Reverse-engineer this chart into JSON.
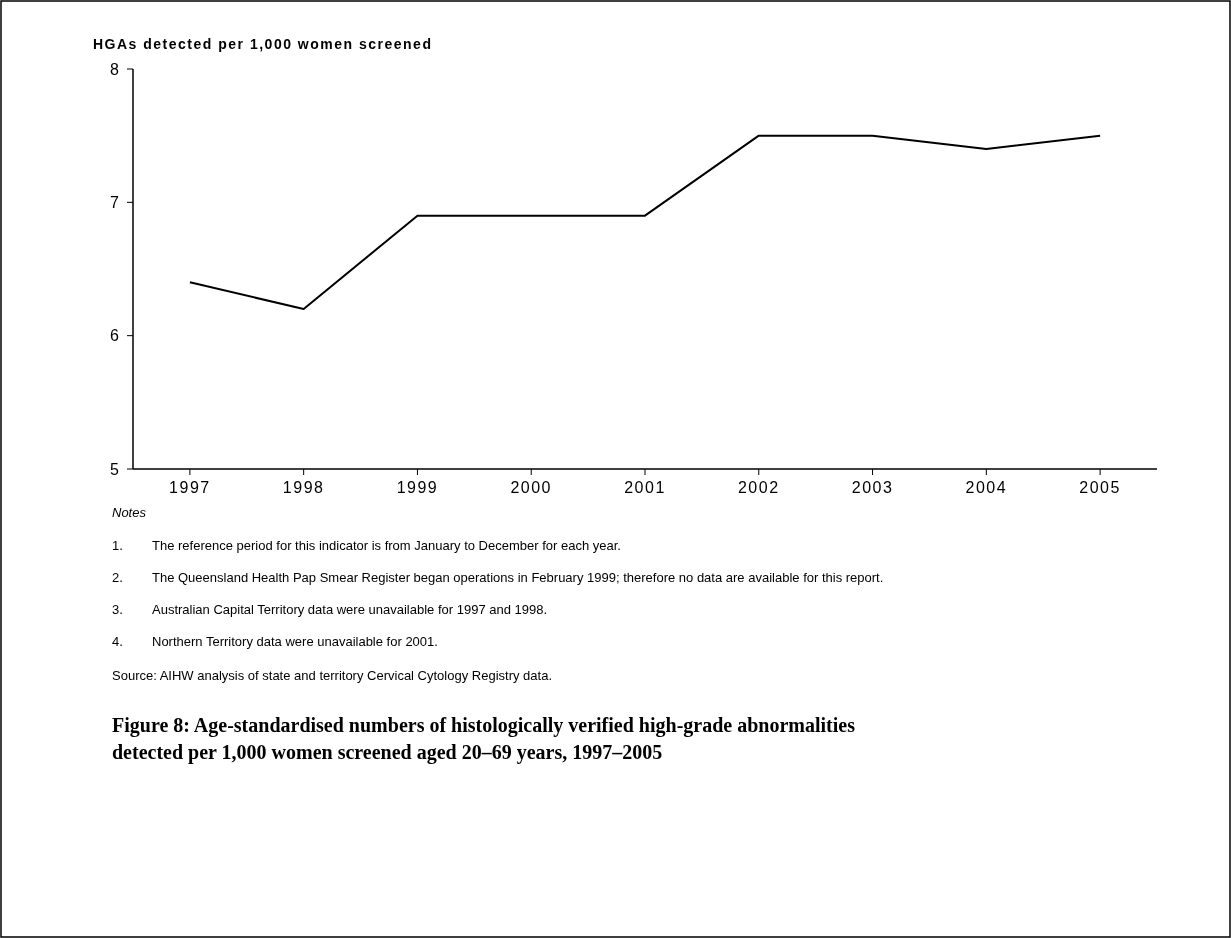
{
  "chart_data": {
    "type": "line",
    "title": "Figure 8: Age-standardised numbers of histologically verified high-grade abnormalities detected per 1,000 women screened aged 20–69 years, 1997–2005",
    "ylabel": "HGAs detected per 1,000 women screened",
    "categories": [
      "1997",
      "1998",
      "1999",
      "2000",
      "2001",
      "2002",
      "2003",
      "2004",
      "2005"
    ],
    "series": [
      {
        "color": "#000000",
        "values": [
          6.4,
          6.2,
          6.9,
          6.9,
          6.9,
          7.5,
          7.5,
          7.4,
          7.5
        ]
      }
    ],
    "ylim": [
      5,
      8
    ],
    "yticks": [
      5,
      6,
      7,
      8
    ],
    "grid": false,
    "marker": "none",
    "line_style": "solid",
    "annotations": [
      "Notes",
      "1. The reference period for this indicator is from January to December for each year.",
      "2. The Queensland Health Pap Smear Register began operations in February 1999; therefore no data are available for this report.",
      "3. Australian Capital Territory data were unavailable for 1997 and 1998.",
      "4. Northern Territory data were unavailable for 2001.",
      "Source: AIHW analysis of state and territory Cervical Cytology Registry data."
    ]
  }
}
